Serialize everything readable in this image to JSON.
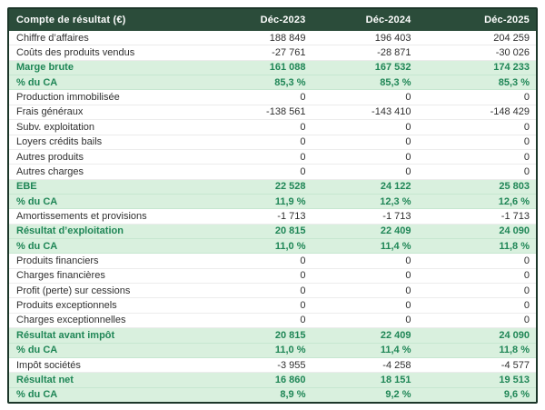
{
  "colors": {
    "header_bg": "#2b4c3a",
    "header_text": "#ffffff",
    "highlight_bg": "#d9f0de",
    "highlight_text": "#1f8656",
    "normal_text": "#2f2f2f",
    "outer_border": "#1c3629"
  },
  "table": {
    "header": {
      "label": "Compte de résultat (€)",
      "cols": [
        "Déc-2023",
        "Déc-2024",
        "Déc-2025"
      ]
    },
    "rows": [
      {
        "type": "normal",
        "label": "Chiffre d’affaires",
        "values": [
          "188 849",
          "196 403",
          "204 259"
        ]
      },
      {
        "type": "normal",
        "label": "Coûts des produits vendus",
        "values": [
          "-27 761",
          "-28 871",
          "-30 026"
        ]
      },
      {
        "type": "highlight",
        "label": "Marge brute",
        "values": [
          "161 088",
          "167 532",
          "174 233"
        ]
      },
      {
        "type": "highlight",
        "label": "% du CA",
        "values": [
          "85,3 %",
          "85,3 %",
          "85,3 %"
        ]
      },
      {
        "type": "normal",
        "label": "Production immobilisée",
        "values": [
          "0",
          "0",
          "0"
        ]
      },
      {
        "type": "normal",
        "label": "Frais généraux",
        "values": [
          "-138 561",
          "-143 410",
          "-148 429"
        ]
      },
      {
        "type": "normal",
        "label": "Subv. exploitation",
        "values": [
          "0",
          "0",
          "0"
        ]
      },
      {
        "type": "normal",
        "label": "Loyers crédits bails",
        "values": [
          "0",
          "0",
          "0"
        ]
      },
      {
        "type": "normal",
        "label": "Autres produits",
        "values": [
          "0",
          "0",
          "0"
        ]
      },
      {
        "type": "normal",
        "label": "Autres charges",
        "values": [
          "0",
          "0",
          "0"
        ]
      },
      {
        "type": "highlight",
        "label": "EBE",
        "values": [
          "22 528",
          "24 122",
          "25 803"
        ]
      },
      {
        "type": "highlight",
        "label": "% du CA",
        "values": [
          "11,9 %",
          "12,3 %",
          "12,6 %"
        ]
      },
      {
        "type": "normal",
        "label": "Amortissements et provisions",
        "values": [
          "-1 713",
          "-1 713",
          "-1 713"
        ]
      },
      {
        "type": "highlight",
        "label": "Résultat d’exploitation",
        "values": [
          "20 815",
          "22 409",
          "24 090"
        ]
      },
      {
        "type": "highlight",
        "label": "% du CA",
        "values": [
          "11,0 %",
          "11,4 %",
          "11,8 %"
        ]
      },
      {
        "type": "normal",
        "label": "Produits financiers",
        "values": [
          "0",
          "0",
          "0"
        ]
      },
      {
        "type": "normal",
        "label": "Charges financières",
        "values": [
          "0",
          "0",
          "0"
        ]
      },
      {
        "type": "normal",
        "label": "Profit (perte) sur cessions",
        "values": [
          "0",
          "0",
          "0"
        ]
      },
      {
        "type": "normal",
        "label": "Produits exceptionnels",
        "values": [
          "0",
          "0",
          "0"
        ]
      },
      {
        "type": "normal",
        "label": "Charges exceptionnelles",
        "values": [
          "0",
          "0",
          "0"
        ]
      },
      {
        "type": "highlight",
        "label": "Résultat avant impôt",
        "values": [
          "20 815",
          "22 409",
          "24 090"
        ]
      },
      {
        "type": "highlight",
        "label": "% du CA",
        "values": [
          "11,0 %",
          "11,4 %",
          "11,8 %"
        ]
      },
      {
        "type": "normal",
        "label": "Impôt sociétés",
        "values": [
          "-3 955",
          "-4 258",
          "-4 577"
        ]
      },
      {
        "type": "highlight",
        "label": "Résultat net",
        "values": [
          "16 860",
          "18 151",
          "19 513"
        ]
      },
      {
        "type": "highlight",
        "label": "% du CA",
        "values": [
          "8,9 %",
          "9,2 %",
          "9,6 %"
        ]
      }
    ]
  }
}
